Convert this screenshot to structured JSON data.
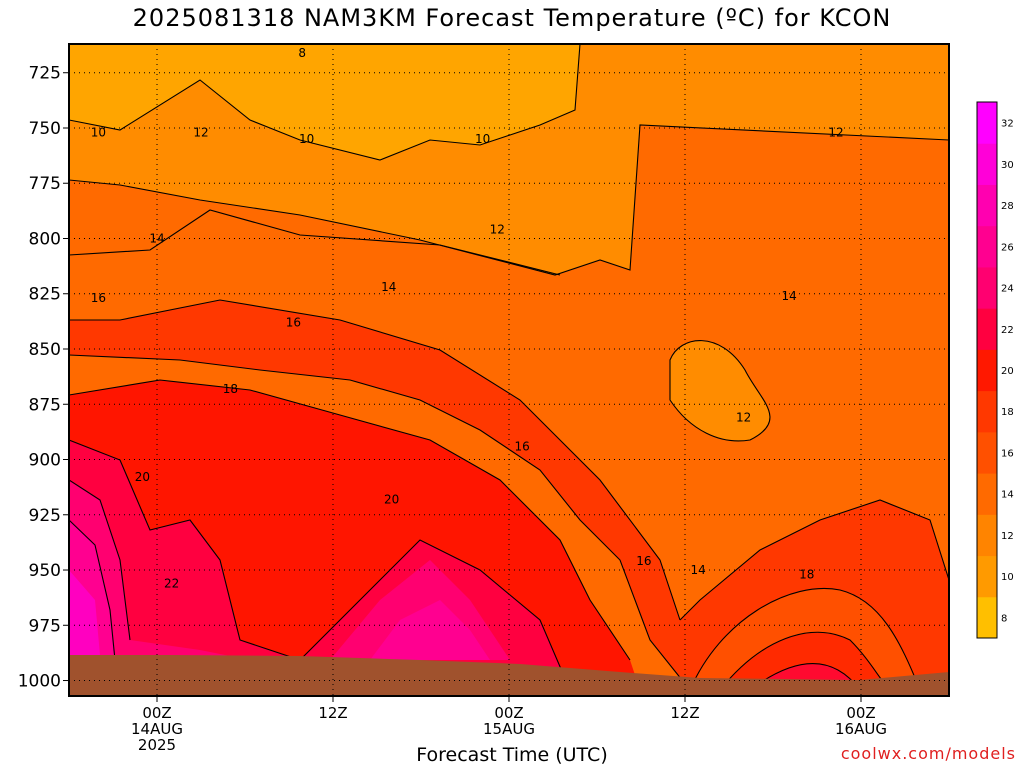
{
  "chart_data": {
    "type": "heatmap",
    "title": "2025081318 NAM3KM Forecast Temperature (ºC) for KCON",
    "xlabel": "Forecast Time (UTC)",
    "ylabel": "",
    "x_ticks": [
      {
        "hour": 6,
        "lines": [
          "00Z",
          "14AUG",
          "2025"
        ]
      },
      {
        "hour": 18,
        "lines": [
          "12Z"
        ]
      },
      {
        "hour": 30,
        "lines": [
          "00Z",
          "15AUG"
        ]
      },
      {
        "hour": 42,
        "lines": [
          "12Z"
        ]
      },
      {
        "hour": 54,
        "lines": [
          "00Z",
          "16AUG"
        ]
      }
    ],
    "xlim": [
      0,
      60
    ],
    "y_ticks": [
      725,
      750,
      775,
      800,
      825,
      850,
      875,
      900,
      925,
      950,
      975,
      1000
    ],
    "ylim": [
      712,
      1007
    ],
    "y_scale": "pressure (hPa), inverted",
    "grid": true,
    "colorbar": {
      "position": "right",
      "ticks": [
        8,
        10,
        12,
        14,
        16,
        18,
        20,
        22,
        24,
        26,
        28,
        30,
        32
      ],
      "colors": [
        "#ffbf00",
        "#ff9a00",
        "#ff8400",
        "#ff6a00",
        "#ff5000",
        "#ff3800",
        "#ff1800",
        "#ff0040",
        "#ff0070",
        "#ff0090",
        "#ff00b0",
        "#ff00d8",
        "#ff00ff"
      ]
    },
    "contour_labels": [
      {
        "value": "8",
        "hour": 15.9,
        "p": 716
      },
      {
        "value": "10",
        "hour": 2.0,
        "p": 752
      },
      {
        "value": "12",
        "hour": 9.0,
        "p": 752
      },
      {
        "value": "10",
        "hour": 16.2,
        "p": 755
      },
      {
        "value": "10",
        "hour": 28.2,
        "p": 755
      },
      {
        "value": "12",
        "hour": 52.3,
        "p": 752
      },
      {
        "value": "12",
        "hour": 29.2,
        "p": 796
      },
      {
        "value": "14",
        "hour": 6.0,
        "p": 800
      },
      {
        "value": "14",
        "hour": 21.8,
        "p": 822
      },
      {
        "value": "14",
        "hour": 49.1,
        "p": 826
      },
      {
        "value": "16",
        "hour": 2.0,
        "p": 827
      },
      {
        "value": "16",
        "hour": 15.3,
        "p": 838
      },
      {
        "value": "18",
        "hour": 11.0,
        "p": 868
      },
      {
        "value": "12",
        "hour": 46.0,
        "p": 881
      },
      {
        "value": "16",
        "hour": 30.9,
        "p": 894
      },
      {
        "value": "20",
        "hour": 5.0,
        "p": 908
      },
      {
        "value": "20",
        "hour": 22.0,
        "p": 918
      },
      {
        "value": "16",
        "hour": 39.2,
        "p": 946
      },
      {
        "value": "14",
        "hour": 42.9,
        "p": 950
      },
      {
        "value": "18",
        "hour": 50.3,
        "p": 952
      },
      {
        "value": "22",
        "hour": 7.0,
        "p": 956
      }
    ],
    "terrain_color": "#a0522d"
  },
  "xlabel_text": "Forecast Time (UTC)",
  "credit": "coolwx.com/models"
}
